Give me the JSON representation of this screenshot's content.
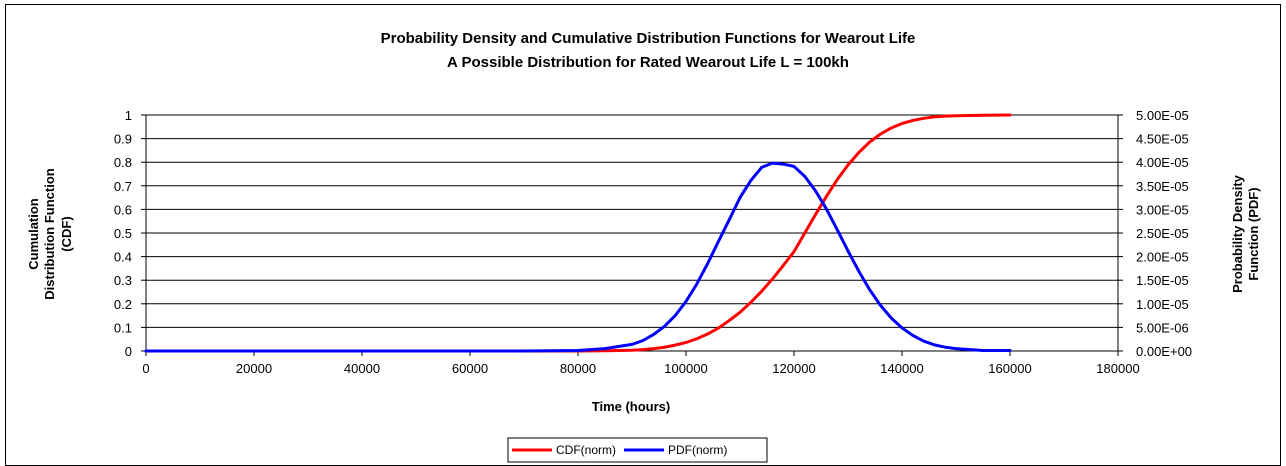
{
  "chart_data": {
    "type": "line",
    "title": "Probability Density and Cumulative Distribution Functions for Wearout Life",
    "subtitle": "A Possible Distribution for Rated Wearout Life L = 100kh",
    "xlabel": "Time (hours)",
    "ylabel_left": [
      "Cumulation",
      "Distribution Function",
      "(CDF)"
    ],
    "ylabel_right": [
      "Probability Density",
      "Function (PDF)"
    ],
    "xlim": [
      0,
      180000
    ],
    "ylim_left": [
      0,
      1
    ],
    "ylim_right": [
      0,
      5e-05
    ],
    "x_ticks": [
      "0",
      "20000",
      "40000",
      "60000",
      "80000",
      "100000",
      "120000",
      "140000",
      "160000",
      "180000"
    ],
    "y_left_ticks": [
      "0",
      "0.1",
      "0.2",
      "0.3",
      "0.4",
      "0.5",
      "0.6",
      "0.7",
      "0.8",
      "0.9",
      "1"
    ],
    "y_right_ticks": [
      "0.00E+00",
      "5.00E-06",
      "1.00E-05",
      "1.50E-05",
      "2.00E-05",
      "2.50E-05",
      "3.00E-05",
      "3.50E-05",
      "4.00E-05",
      "4.50E-05",
      "5.00E-05"
    ],
    "grid": "horizontal",
    "legend_position": "bottom",
    "x": [
      0,
      10000,
      20000,
      30000,
      40000,
      50000,
      60000,
      70000,
      80000,
      85000,
      90000,
      92000,
      94000,
      96000,
      98000,
      100000,
      102000,
      104000,
      106000,
      108000,
      110000,
      112000,
      114000,
      116000,
      118000,
      120000,
      122000,
      124000,
      126000,
      128000,
      130000,
      132000,
      134000,
      136000,
      138000,
      140000,
      142000,
      144000,
      146000,
      148000,
      150000,
      155000,
      160000
    ],
    "series": [
      {
        "name": "CDF(norm)",
        "axis": "left",
        "color": "#ff0000",
        "values": [
          0,
          0,
          0,
          0,
          0,
          0,
          0,
          0,
          0,
          0.001,
          0.003,
          0.006,
          0.01,
          0.016,
          0.025,
          0.036,
          0.052,
          0.072,
          0.097,
          0.129,
          0.164,
          0.206,
          0.253,
          0.305,
          0.362,
          0.421,
          0.5,
          0.579,
          0.655,
          0.726,
          0.788,
          0.841,
          0.885,
          0.919,
          0.945,
          0.964,
          0.977,
          0.986,
          0.992,
          0.995,
          0.997,
          0.999,
          1.0
        ]
      },
      {
        "name": "PDF(norm)",
        "axis": "right",
        "color": "#0000ff",
        "values": [
          0,
          0,
          0,
          0,
          0,
          0,
          0,
          0,
          1e-07,
          5e-07,
          1.4e-06,
          2.2e-06,
          3.5e-06,
          5.2e-06,
          7.5e-06,
          1.05e-05,
          1.42e-05,
          1.85e-05,
          2.32e-05,
          2.78e-05,
          3.25e-05,
          3.61e-05,
          3.89e-05,
          3.98e-05,
          3.96e-05,
          3.91e-05,
          3.7e-05,
          3.39e-05,
          3.01e-05,
          2.57e-05,
          2.12e-05,
          1.69e-05,
          1.3e-05,
          9.7e-06,
          7e-06,
          4.9e-06,
          3.3e-06,
          2.1e-06,
          1.3e-06,
          8e-07,
          5e-07,
          1e-07,
          1e-07
        ]
      }
    ]
  }
}
